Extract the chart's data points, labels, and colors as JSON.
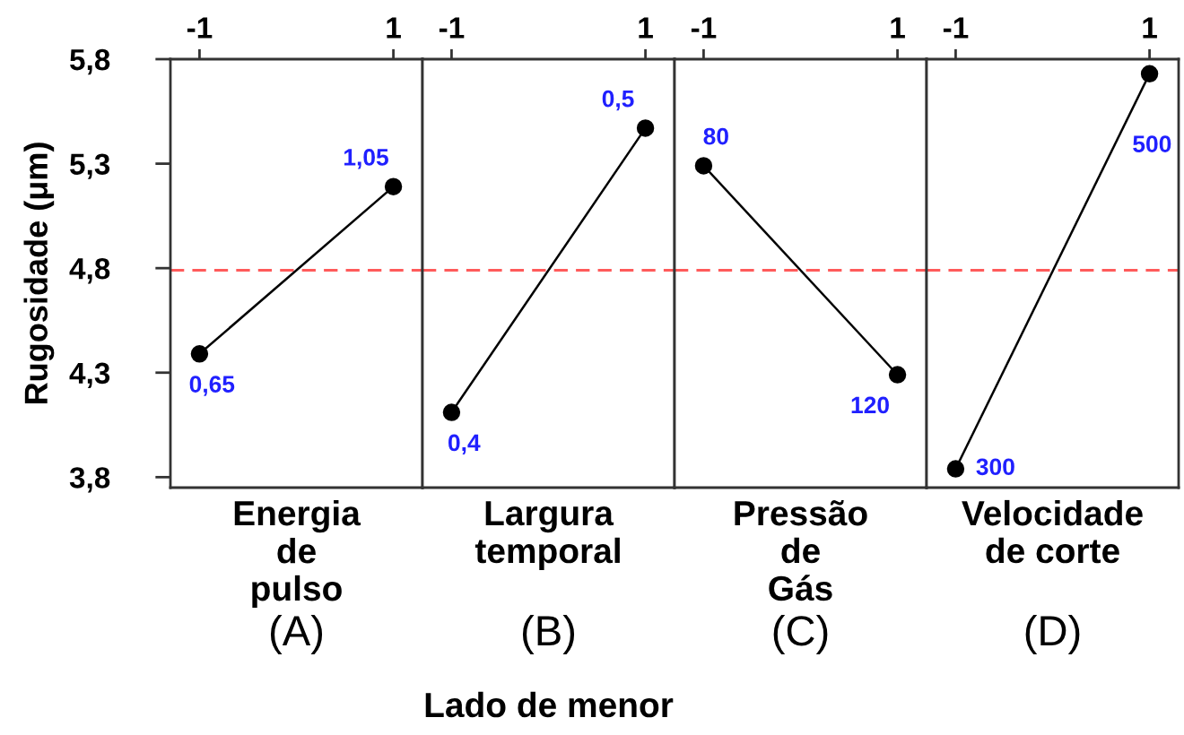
{
  "chart_data": [
    {
      "type": "line",
      "ylabel": "Rugosidade (μm)",
      "xlabel": "Energia\nde\npulso",
      "categories": [
        "-1",
        "1"
      ],
      "series": [
        {
          "color": "#000000",
          "values": [
            4.39,
            5.19
          ]
        }
      ],
      "marker": "circle",
      "ylim": [
        3.75,
        5.8
      ],
      "yticks": [
        {
          "value": 3.8,
          "label": "3,8"
        },
        {
          "value": 4.3,
          "label": "4,3"
        },
        {
          "value": 4.8,
          "label": "4,8"
        },
        {
          "value": 5.3,
          "label": "5,3"
        },
        {
          "value": 5.8,
          "label": "5,8"
        }
      ],
      "ref_lines": [
        {
          "axis": "y",
          "value": 4.79,
          "color": "#ff5a5a",
          "line_style": "dashed"
        }
      ],
      "annotations": [
        {
          "text": "0,65",
          "x": "-1",
          "y": 4.39
        },
        {
          "text": "1,05",
          "x": "1",
          "y": 5.19
        },
        "(A)"
      ]
    },
    {
      "type": "line",
      "xlabel": "Largura\ntemporal",
      "categories": [
        "-1",
        "1"
      ],
      "series": [
        {
          "color": "#000000",
          "values": [
            4.11,
            5.47
          ]
        }
      ],
      "marker": "circle",
      "ylim": [
        3.75,
        5.8
      ],
      "tick_labels": "x",
      "ref_lines": [
        {
          "axis": "y",
          "value": 4.79,
          "color": "#ff5a5a",
          "line_style": "dashed"
        }
      ],
      "annotations": [
        {
          "text": "0,4",
          "x": "-1",
          "y": 4.11
        },
        {
          "text": "0,5",
          "x": "1",
          "y": 5.47
        },
        "(B)",
        "Lado de menor"
      ]
    },
    {
      "type": "line",
      "xlabel": "Pressão\nde\nGás",
      "categories": [
        "-1",
        "1"
      ],
      "series": [
        {
          "color": "#000000",
          "values": [
            5.29,
            4.29
          ]
        }
      ],
      "marker": "circle",
      "ylim": [
        3.75,
        5.8
      ],
      "tick_labels": "x",
      "ref_lines": [
        {
          "axis": "y",
          "value": 4.79,
          "color": "#ff5a5a",
          "line_style": "dashed"
        }
      ],
      "annotations": [
        {
          "text": "80",
          "x": "-1",
          "y": 5.29
        },
        {
          "text": "120",
          "x": "1",
          "y": 4.29
        },
        "(C)"
      ]
    },
    {
      "type": "line",
      "xlabel": "Velocidade\nde corte",
      "categories": [
        "-1",
        "1"
      ],
      "series": [
        {
          "color": "#000000",
          "values": [
            3.84,
            5.73
          ]
        }
      ],
      "marker": "circle",
      "ylim": [
        3.75,
        5.8
      ],
      "tick_labels": "x",
      "ref_lines": [
        {
          "axis": "y",
          "value": 4.79,
          "color": "#ff5a5a",
          "line_style": "dashed"
        }
      ],
      "annotations": [
        {
          "text": "300",
          "x": "-1",
          "y": 3.84
        },
        {
          "text": "500",
          "x": "1",
          "y": 5.73
        },
        "(D)"
      ]
    }
  ]
}
